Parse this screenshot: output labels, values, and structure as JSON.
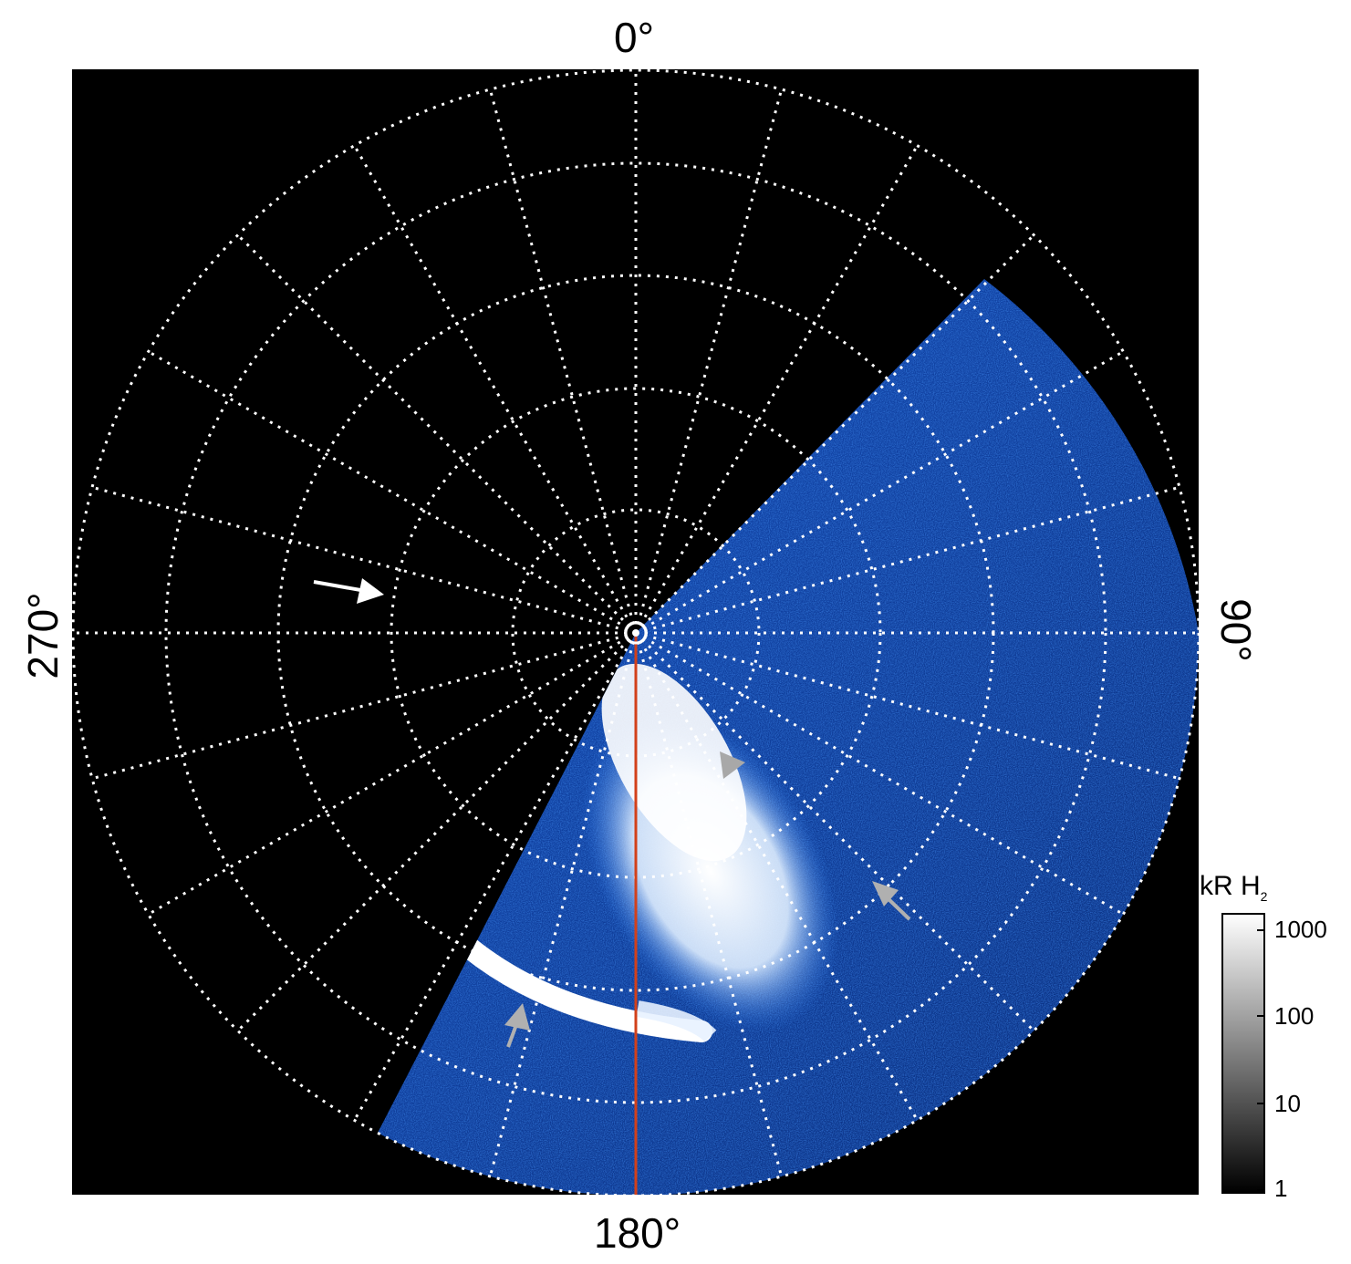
{
  "labels": {
    "top": "0°",
    "bottom": "180°",
    "left": "270°",
    "right": "90°"
  },
  "colorbar": {
    "title_main": "kR H",
    "title_sub": "2",
    "ticks": [
      "1000",
      "100",
      "10",
      "1"
    ],
    "scale": "log",
    "range": [
      1,
      1500
    ]
  },
  "colors": {
    "background": "#000000",
    "grid": "#ffffff",
    "emission_low": "#0a3fa0",
    "emission_mid": "#2f7ff0",
    "emission_high": "#ffffff",
    "meridian_line": "#d2401a",
    "arrow_white": "#ffffff",
    "arrow_gray": "#b0b0b0"
  },
  "grid": {
    "rings": 6,
    "spokes": 24
  },
  "arrows": [
    {
      "name": "white-arrow",
      "color": "white"
    },
    {
      "name": "gray-arrowhead-upper",
      "color": "gray"
    },
    {
      "name": "gray-arrow-right",
      "color": "gray"
    },
    {
      "name": "gray-arrow-lower",
      "color": "gray"
    }
  ]
}
